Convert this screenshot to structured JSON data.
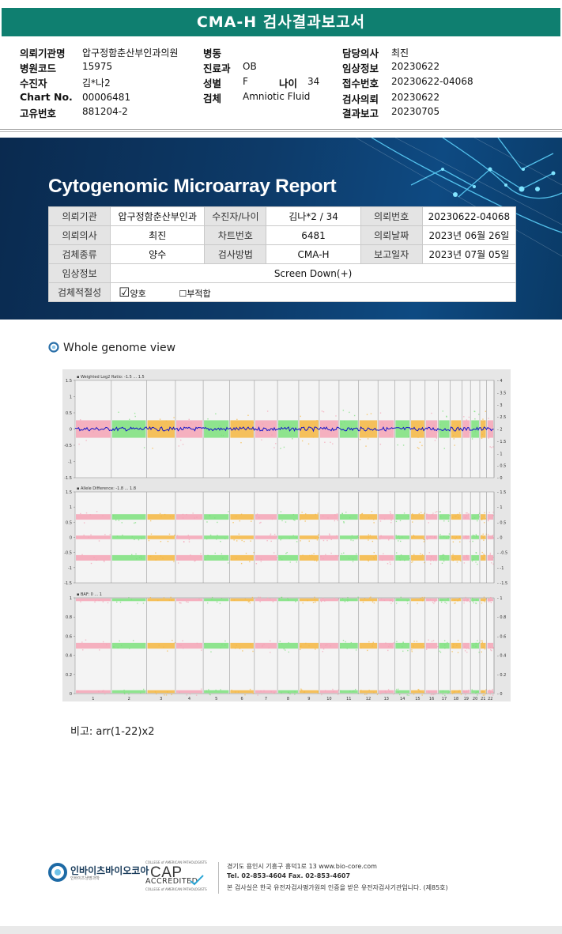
{
  "report_title": "CMA-H 검사결과보고서",
  "info": {
    "requesting_institution_label": "의뢰기관명",
    "requesting_institution": "압구정함춘산부인과의원",
    "hospital_code_label": "병원코드",
    "hospital_code": "15975",
    "patient_label": "수진자",
    "patient": "김*나2",
    "chart_no_label": "Chart No.",
    "chart_no": "00006481",
    "unique_no_label": "고유번호",
    "unique_no": "881204-2",
    "ward_label": "병동",
    "ward": "",
    "department_label": "진료과",
    "department": "OB",
    "sex_label": "성별",
    "sex": "F",
    "age_label": "나이",
    "age": "34",
    "specimen_label": "검체",
    "specimen": "Amniotic Fluid",
    "doctor_label": "담당의사",
    "doctor": "최진",
    "clinical_info_label": "임상정보",
    "clinical_info": "20230622",
    "receipt_no_label": "접수번호",
    "receipt_no": "20230622-04068",
    "test_request_label": "검사의뢰",
    "test_request": "20230622",
    "result_report_label": "결과보고",
    "result_report": "20230705"
  },
  "banner": {
    "title": "Cytogenomic Microarray Report",
    "table": {
      "r1": [
        "의뢰기관",
        "압구정함춘산부인과",
        "수진자/나이",
        "김나*2 / 34",
        "의뢰번호",
        "20230622-04068"
      ],
      "r2": [
        "의뢰의사",
        "최진",
        "차트번호",
        "6481",
        "의뢰날짜",
        "2023년 06월 26일"
      ],
      "r3": [
        "검체종류",
        "양수",
        "검사방법",
        "CMA-H",
        "보고일자",
        "2023년 07월 05일"
      ],
      "clinical_label": "임상정보",
      "clinical_value": "Screen Down(+)",
      "suitability_label": "검체적절성",
      "good": "양호",
      "bad": "부적합"
    }
  },
  "section": {
    "whole_genome": "Whole genome view"
  },
  "plot": {
    "panel1_title": "Weighted Log2 Ratio: -1.5 ... 1.5",
    "panel2_title": "Allele Difference: -1.8 ... 1.8",
    "panel3_title": "BAF: 0 ... 1",
    "left1": [
      "1.5",
      "1",
      "0.5",
      "0",
      "-0.5",
      "-1",
      "-1.5"
    ],
    "right1": [
      "4",
      "3.5",
      "3",
      "2.5",
      "2",
      "1.5",
      "1",
      "0.5",
      "0"
    ],
    "left2": [
      "1.5",
      "1",
      "0.5",
      "0",
      "-0.5",
      "-1",
      "-1.5"
    ],
    "right2": [
      "1.5",
      "1",
      "0.5",
      "0",
      "-0.5",
      "-1",
      "-1.5"
    ],
    "left3": [
      "1",
      "0.8",
      "0.6",
      "0.4",
      "0.2",
      "0"
    ],
    "right3": [
      "1",
      "0.8",
      "0.6",
      "0.4",
      "0.2",
      "0"
    ],
    "chromosomes": [
      "1",
      "2",
      "3",
      "4",
      "5",
      "6",
      "7",
      "8",
      "9",
      "10",
      "11",
      "12",
      "13",
      "14",
      "15",
      "16",
      "17",
      "18",
      "19",
      "20",
      "21",
      "22"
    ],
    "chrom_sizes": [
      249,
      243,
      198,
      191,
      181,
      171,
      159,
      146,
      141,
      136,
      135,
      133,
      115,
      107,
      102,
      90,
      83,
      80,
      59,
      64,
      47,
      51
    ],
    "colors": {
      "pink": "#f4a3b5",
      "green": "#7be07b",
      "orange": "#f5b640",
      "blue": "#1414c8",
      "grid": "#f4f4f4"
    }
  },
  "note": "비고: arr(1-22)x2",
  "footer": {
    "company": "인바이츠바이오코아",
    "company_sub": "인바이츠생명과학",
    "cap": "CAP",
    "cap_top": "COLLEGE of AMERICAN PATHOLOGISTS",
    "accredited": "ACCREDITED",
    "cap_bottom": "COLLEGE of AMERICAN PATHOLOGISTS",
    "address": "경기도 용인시 기흥구 흥덕1로 13   www.bio-core.com",
    "tel": "Tel. 02-853-4604   Fax. 02-853-4607",
    "cert": "본 검사실은 한국 유전자검사평가원의 인증을 받은 유전자검사기관입니다. (제85호)"
  }
}
